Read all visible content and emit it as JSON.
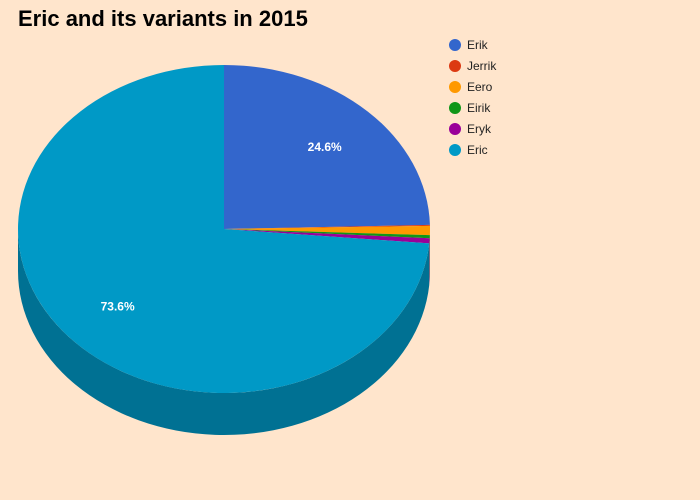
{
  "chart_data": {
    "type": "pie",
    "title": "Eric and its variants in 2015",
    "three_d": true,
    "legend_position": "right",
    "categories": [
      "Erik",
      "Jerrik",
      "Eero",
      "Eirik",
      "Eryk",
      "Eric"
    ],
    "values": [
      24.6,
      0.1,
      0.9,
      0.3,
      0.5,
      73.6
    ],
    "colors": [
      "#3366cc",
      "#dc3912",
      "#ff9900",
      "#109618",
      "#990099",
      "#0099c6"
    ],
    "data_labels": [
      "24.6%",
      "",
      "",
      "",
      "",
      "73.6%"
    ]
  }
}
